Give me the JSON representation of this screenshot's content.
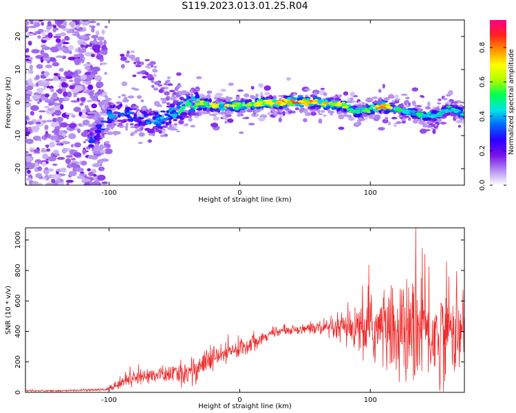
{
  "title": "S119.2023.013.01.25.R04",
  "chart_data": [
    {
      "type": "heatmap",
      "xlabel": "Height of straight line (km)",
      "ylabel": "Frequency (Hz)",
      "xlim": [
        -164,
        172
      ],
      "ylim": [
        -25,
        25
      ],
      "x_ticks": [
        -100,
        0,
        100
      ],
      "y_ticks": [
        -20,
        -10,
        0,
        10,
        20
      ],
      "colorbar": {
        "label": "Normalized spectral amplitude",
        "ticks": [
          "0.0",
          "0.2",
          "0.4",
          "0.6",
          "0.8"
        ],
        "tick_values": [
          0.0,
          0.2,
          0.4,
          0.6,
          0.8
        ],
        "range": [
          0,
          0.96
        ],
        "colors": [
          "#ffffff",
          "#b18cf0",
          "#7a10e8",
          "#2a00ff",
          "#0066ff",
          "#00e5e5",
          "#00ff50",
          "#b0ff00",
          "#ffff00",
          "#ff9000",
          "#ff2020",
          "#ff0088"
        ]
      },
      "ridge": {
        "x": [
          -112,
          -100,
          -90,
          -80,
          -70,
          -60,
          -50,
          -40,
          -32,
          -20,
          -10,
          0,
          20,
          40,
          60,
          80,
          90,
          100,
          110,
          120,
          130,
          140,
          150,
          160,
          170
        ],
        "freq": [
          -11,
          -4,
          -3,
          -4,
          -6,
          -5,
          -3,
          -1,
          0,
          -1,
          -1,
          -1,
          0,
          0,
          0,
          -1,
          -3,
          -2,
          -1,
          -2,
          -3,
          -4,
          -4,
          -2,
          -3
        ],
        "amplitude": [
          0.35,
          0.4,
          0.4,
          0.35,
          0.4,
          0.45,
          0.5,
          0.55,
          0.6,
          0.7,
          0.7,
          0.65,
          0.75,
          0.9,
          0.8,
          0.65,
          0.5,
          0.6,
          0.85,
          0.6,
          0.45,
          0.5,
          0.5,
          0.5,
          0.5
        ]
      }
    },
    {
      "type": "line",
      "xlabel": "Height of straight line (km)",
      "ylabel": "SNR (10 * v/v)",
      "xlim": [
        -164,
        172
      ],
      "ylim": [
        0,
        1080
      ],
      "x_ticks": [
        -100,
        0,
        100
      ],
      "y_ticks": [
        0,
        200,
        400,
        600,
        800,
        1000
      ],
      "color": "#ee2a2a",
      "series": [
        {
          "x": [
            -164,
            -150,
            -140,
            -130,
            -120,
            -110,
            -102,
            -97,
            -90,
            -80,
            -70,
            -60,
            -50,
            -40,
            -35,
            -25,
            -15,
            -5,
            0,
            10,
            20,
            25,
            30,
            40,
            50,
            60,
            70,
            80,
            90,
            100,
            110,
            120,
            130,
            140,
            150,
            160,
            172
          ],
          "mean": [
            12,
            10,
            10,
            12,
            14,
            15,
            20,
            35,
            70,
            100,
            110,
            115,
            120,
            130,
            150,
            200,
            240,
            270,
            290,
            330,
            370,
            390,
            400,
            410,
            420,
            420,
            410,
            420,
            400,
            420,
            420,
            390,
            380,
            430,
            350,
            420,
            380
          ],
          "spread": [
            5,
            5,
            5,
            5,
            6,
            7,
            10,
            25,
            35,
            45,
            45,
            50,
            55,
            80,
            90,
            80,
            70,
            60,
            60,
            55,
            30,
            25,
            25,
            25,
            30,
            50,
            60,
            100,
            150,
            200,
            250,
            280,
            320,
            330,
            300,
            260,
            250
          ]
        }
      ]
    }
  ]
}
